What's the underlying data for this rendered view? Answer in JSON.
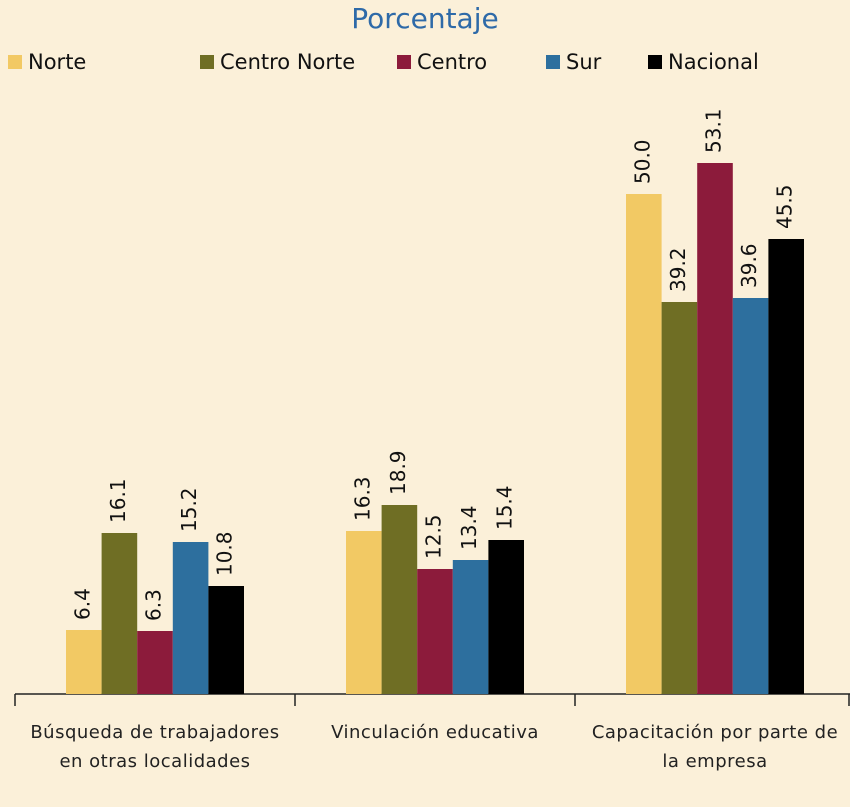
{
  "chart_data": {
    "type": "bar",
    "title": "Porcentaje",
    "categories": [
      "Búsqueda de trabajadores en otras localidades",
      "Vinculación educativa",
      "Capacitación por parte de la empresa"
    ],
    "series": [
      {
        "name": "Norte",
        "color": "#f2c964",
        "values": [
          6.4,
          16.3,
          50.0
        ],
        "value_labels": [
          "6.4",
          "16.3",
          "50.0"
        ]
      },
      {
        "name": "Centro Norte",
        "color": "#6f6e24",
        "values": [
          16.1,
          18.9,
          39.2
        ],
        "value_labels": [
          "16.1",
          "18.9",
          "39.2"
        ]
      },
      {
        "name": "Centro",
        "color": "#8c1b3b",
        "values": [
          6.3,
          12.5,
          53.1
        ],
        "value_labels": [
          "6.3",
          "12.5",
          "53.1"
        ]
      },
      {
        "name": "Sur",
        "color": "#2d6f9e",
        "values": [
          15.2,
          13.4,
          39.6
        ],
        "value_labels": [
          "15.2",
          "13.4",
          "39.6"
        ]
      },
      {
        "name": "Nacional",
        "color": "#000000",
        "values": [
          10.8,
          15.4,
          45.5
        ],
        "value_labels": [
          "10.8",
          "15.4",
          "45.5"
        ]
      }
    ],
    "ylim": [
      0,
      60
    ],
    "legend": "top"
  }
}
